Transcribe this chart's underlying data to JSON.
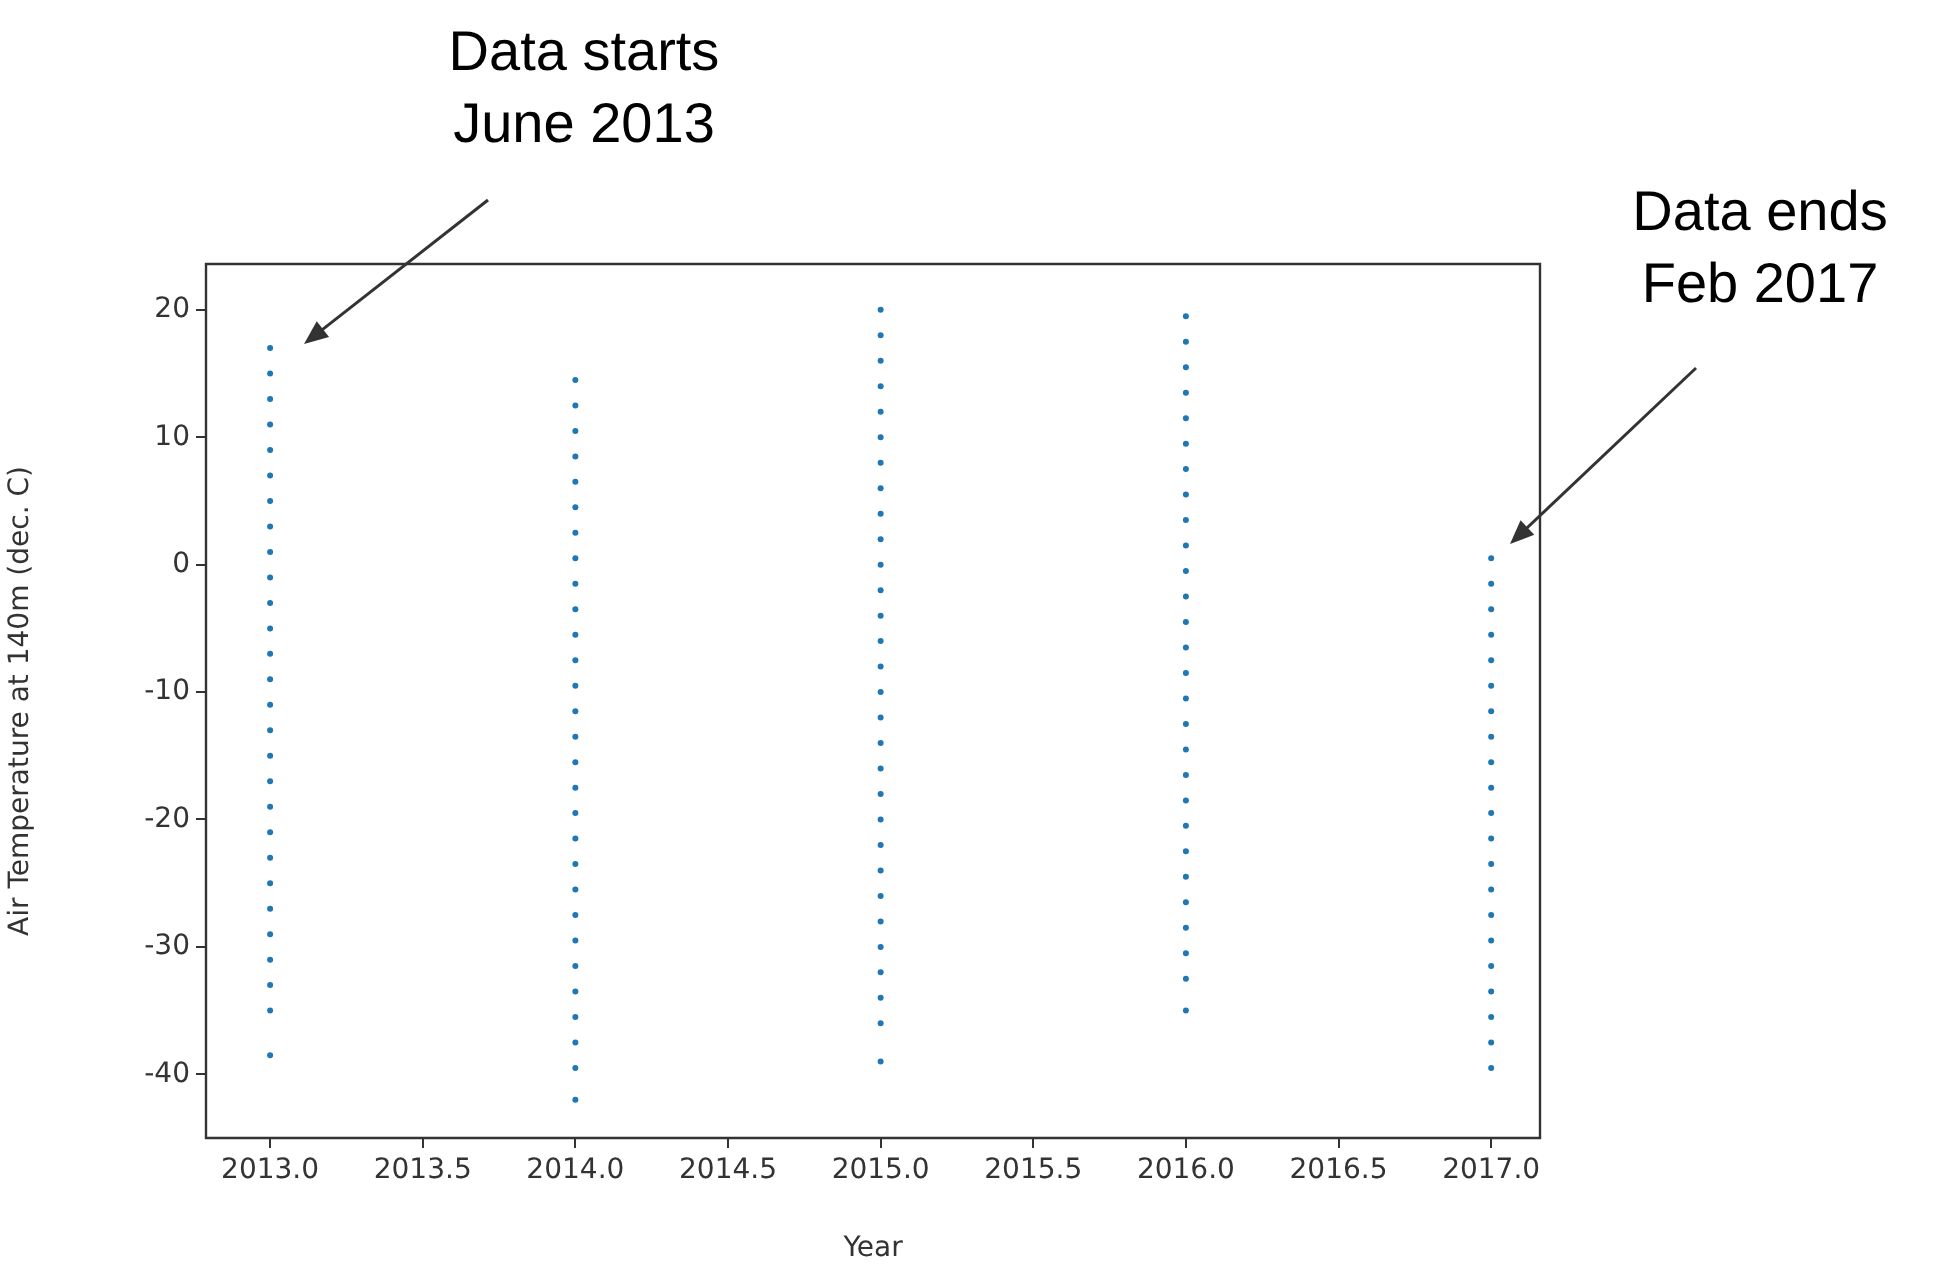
{
  "chart_data": {
    "type": "scatter",
    "xlabel": "Year",
    "ylabel": "Air Temperature at 140m (dec. C)",
    "xlim": [
      2012.79,
      2017.16
    ],
    "ylim": [
      -45,
      23.6
    ],
    "xticks": [
      {
        "value": 2013,
        "label": "2013.0"
      },
      {
        "value": 2013.5,
        "label": "2013.5"
      },
      {
        "value": 2014,
        "label": "2014.0"
      },
      {
        "value": 2014.5,
        "label": "2014.5"
      },
      {
        "value": 2015,
        "label": "2015.0"
      },
      {
        "value": 2015.5,
        "label": "2015.5"
      },
      {
        "value": 2016,
        "label": "2016.0"
      },
      {
        "value": 2016.5,
        "label": "2016.5"
      },
      {
        "value": 2017,
        "label": "2017.0"
      }
    ],
    "yticks": [
      20,
      10,
      0,
      -10,
      -20,
      -30,
      -40
    ],
    "grid": false,
    "legend": false,
    "marker": "circle",
    "annotations": [
      "Data starts\nJune 2013",
      "Data ends\nFeb 2017"
    ],
    "series": [
      {
        "color": "#1f77b4",
        "x": [
          2013,
          2013,
          2013,
          2013,
          2013,
          2013,
          2013,
          2013,
          2013,
          2013,
          2013,
          2013,
          2013,
          2013,
          2013,
          2013,
          2013,
          2013,
          2013,
          2013,
          2013,
          2013,
          2013,
          2013,
          2013,
          2013,
          2013,
          2013
        ],
        "values": [
          17,
          15,
          13,
          11,
          9,
          7,
          5,
          3,
          1,
          -1,
          -3,
          -5,
          -7,
          -9,
          -11,
          -13,
          -15,
          -17,
          -19,
          -21,
          -23,
          -25,
          -27,
          -29,
          -31,
          -33,
          -35,
          -38.5
        ]
      },
      {
        "color": "#1f77b4",
        "x": [
          2014,
          2014,
          2014,
          2014,
          2014,
          2014,
          2014,
          2014,
          2014,
          2014,
          2014,
          2014,
          2014,
          2014,
          2014,
          2014,
          2014,
          2014,
          2014,
          2014,
          2014,
          2014,
          2014,
          2014,
          2014,
          2014,
          2014,
          2014,
          2014
        ],
        "values": [
          14.5,
          12.5,
          10.5,
          8.5,
          6.5,
          4.5,
          2.5,
          0.5,
          -1.5,
          -3.5,
          -5.5,
          -7.5,
          -9.5,
          -11.5,
          -13.5,
          -15.5,
          -17.5,
          -19.5,
          -21.5,
          -23.5,
          -25.5,
          -27.5,
          -29.5,
          -31.5,
          -33.5,
          -35.5,
          -37.5,
          -39.5,
          -42
        ]
      },
      {
        "color": "#1f77b4",
        "x": [
          2015,
          2015,
          2015,
          2015,
          2015,
          2015,
          2015,
          2015,
          2015,
          2015,
          2015,
          2015,
          2015,
          2015,
          2015,
          2015,
          2015,
          2015,
          2015,
          2015,
          2015,
          2015,
          2015,
          2015,
          2015,
          2015,
          2015,
          2015,
          2015,
          2015
        ],
        "values": [
          20,
          18,
          16,
          14,
          12,
          10,
          8,
          6,
          4,
          2,
          0,
          -2,
          -4,
          -6,
          -8,
          -10,
          -12,
          -14,
          -16,
          -18,
          -20,
          -22,
          -24,
          -26,
          -28,
          -30,
          -32,
          -34,
          -36,
          -39
        ]
      },
      {
        "color": "#1f77b4",
        "x": [
          2016,
          2016,
          2016,
          2016,
          2016,
          2016,
          2016,
          2016,
          2016,
          2016,
          2016,
          2016,
          2016,
          2016,
          2016,
          2016,
          2016,
          2016,
          2016,
          2016,
          2016,
          2016,
          2016,
          2016,
          2016,
          2016,
          2016,
          2016
        ],
        "values": [
          19.5,
          17.5,
          15.5,
          13.5,
          11.5,
          9.5,
          7.5,
          5.5,
          3.5,
          1.5,
          -0.5,
          -2.5,
          -4.5,
          -6.5,
          -8.5,
          -10.5,
          -12.5,
          -14.5,
          -16.5,
          -18.5,
          -20.5,
          -22.5,
          -24.5,
          -26.5,
          -28.5,
          -30.5,
          -32.5,
          -35
        ]
      },
      {
        "color": "#1f77b4",
        "x": [
          2017,
          2017,
          2017,
          2017,
          2017,
          2017,
          2017,
          2017,
          2017,
          2017,
          2017,
          2017,
          2017,
          2017,
          2017,
          2017,
          2017,
          2017,
          2017,
          2017,
          2017
        ],
        "values": [
          0.5,
          -1.5,
          -3.5,
          -5.5,
          -7.5,
          -9.5,
          -11.5,
          -13.5,
          -15.5,
          -17.5,
          -19.5,
          -21.5,
          -23.5,
          -25.5,
          -27.5,
          -29.5,
          -31.5,
          -33.5,
          -35.5,
          -37.5,
          -39.5
        ]
      }
    ]
  }
}
